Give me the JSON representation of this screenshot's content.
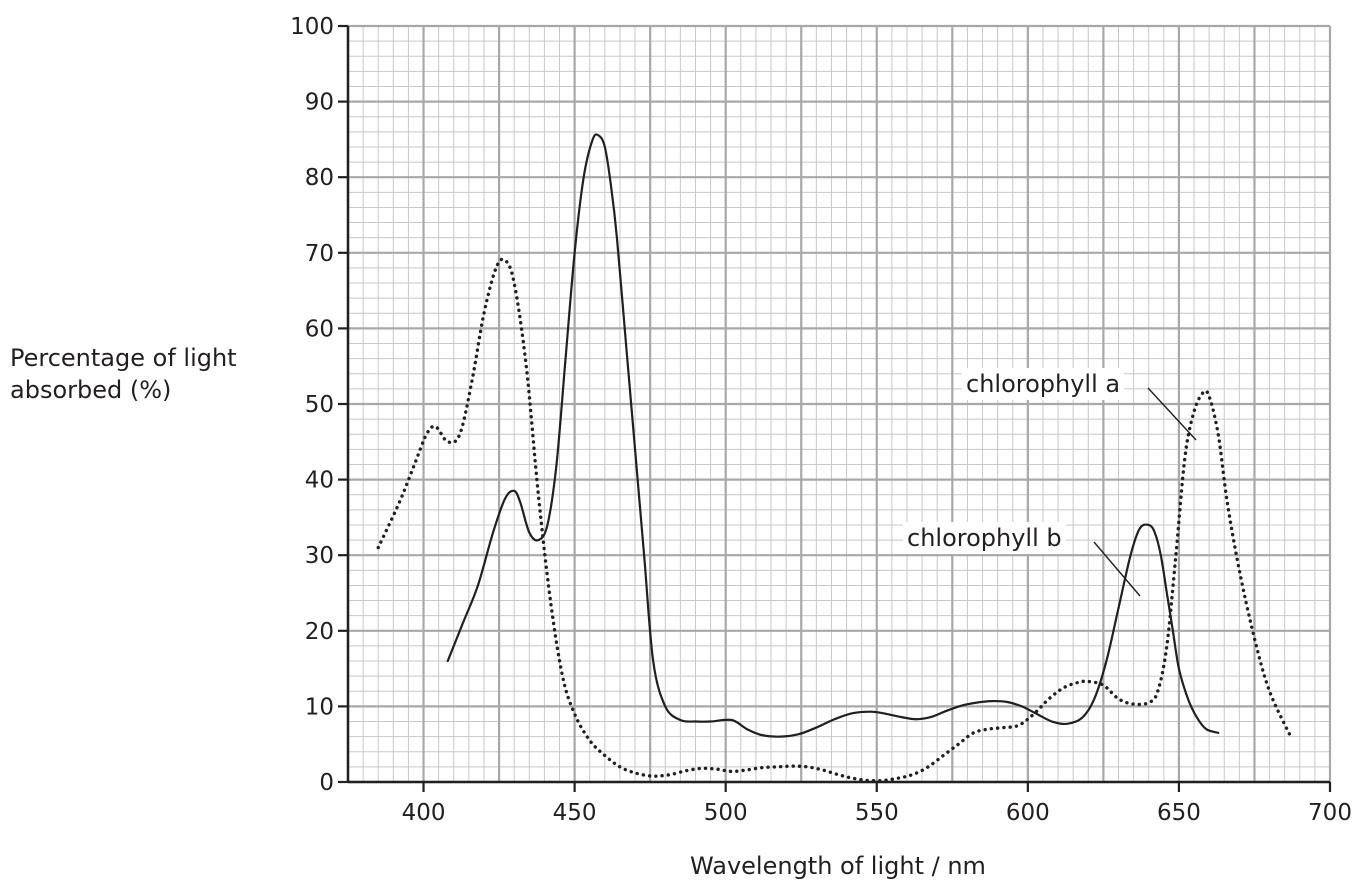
{
  "chart_data": {
    "type": "line",
    "xlabel": "Wavelength of light / nm",
    "ylabel_lines": [
      "Percentage of light",
      "absorbed (%)"
    ],
    "xlim": [
      375,
      700
    ],
    "ylim": [
      0,
      100
    ],
    "xticks": [
      400,
      450,
      500,
      550,
      600,
      650,
      700
    ],
    "yticks": [
      0,
      10,
      20,
      30,
      40,
      50,
      60,
      70,
      80,
      90,
      100
    ],
    "grid": true,
    "series": [
      {
        "name": "chlorophyll a",
        "style": "dotted",
        "x": [
          385,
          392,
          397,
          401,
          404,
          408,
          412,
          416,
          420,
          424,
          427,
          430,
          434,
          438,
          442,
          446,
          450,
          455,
          460,
          465,
          470,
          475,
          478,
          482,
          487,
          492,
          497,
          502,
          507,
          512,
          517,
          522,
          527,
          532,
          537,
          542,
          547,
          552,
          557,
          562,
          567,
          572,
          577,
          582,
          587,
          592,
          597,
          602,
          607,
          612,
          617,
          620,
          625,
          630,
          635,
          640,
          643,
          646,
          649,
          652,
          655,
          658,
          660,
          663,
          666,
          670,
          675,
          680,
          687
        ],
        "values": [
          31,
          37,
          42,
          46,
          47,
          45,
          46,
          53,
          62,
          68,
          69,
          66,
          55,
          38,
          24,
          14,
          9,
          5.5,
          3.5,
          2,
          1.2,
          0.8,
          0.8,
          1,
          1.5,
          1.8,
          1.7,
          1.4,
          1.6,
          1.9,
          2,
          2.1,
          2,
          1.6,
          1,
          0.5,
          0.2,
          0.2,
          0.5,
          1,
          2,
          3.5,
          5,
          6.5,
          7,
          7.2,
          7.5,
          9,
          11,
          12.5,
          13.2,
          13.3,
          12.8,
          11,
          10.3,
          10.5,
          12,
          18,
          30,
          43,
          49,
          51.5,
          51,
          46,
          37,
          28,
          19,
          12,
          6
        ]
      },
      {
        "name": "chlorophyll b",
        "style": "solid",
        "x": [
          408,
          413,
          418,
          423,
          427,
          430,
          432,
          435,
          438,
          441,
          444,
          447,
          450,
          453,
          456,
          458,
          460,
          462,
          464,
          467,
          470,
          473,
          476,
          480,
          485,
          490,
          495,
          502,
          507,
          512,
          518,
          524,
          530,
          536,
          542,
          548,
          552,
          558,
          563,
          568,
          573,
          578,
          583,
          588,
          593,
          598,
          603,
          608,
          613,
          618,
          622,
          626,
          630,
          634,
          637,
          640,
          642,
          644,
          646,
          648,
          650,
          653,
          656,
          659,
          663
        ],
        "values": [
          16,
          21,
          26,
          33,
          37.5,
          38.5,
          37,
          33,
          32,
          34,
          42,
          56,
          70,
          80,
          85,
          85.5,
          84,
          79,
          72,
          58,
          44,
          30,
          16,
          10,
          8.2,
          8,
          8,
          8.2,
          7,
          6.2,
          6,
          6.3,
          7.2,
          8.3,
          9.1,
          9.3,
          9.1,
          8.6,
          8.3,
          8.6,
          9.4,
          10.1,
          10.5,
          10.7,
          10.6,
          10,
          9,
          8,
          7.7,
          8.5,
          11,
          16,
          23,
          30,
          33.5,
          34,
          33,
          30,
          25,
          20,
          15,
          11,
          8.5,
          7,
          6.5
        ]
      }
    ],
    "annotations": [
      {
        "text": "chlorophyll a",
        "series": "chlorophyll a"
      },
      {
        "text": "chlorophyll b",
        "series": "chlorophyll b"
      }
    ]
  }
}
